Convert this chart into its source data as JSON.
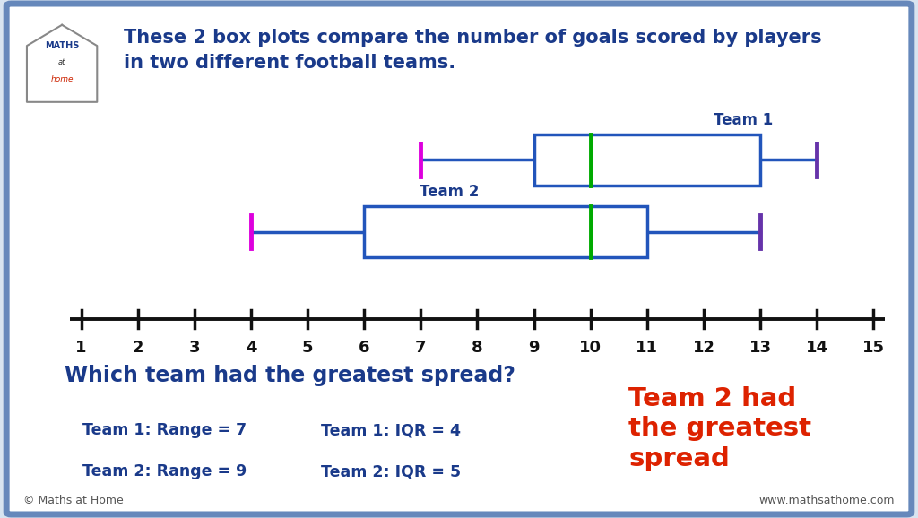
{
  "team1": {
    "min": 7,
    "q1": 9,
    "median": 10,
    "q3": 13,
    "max": 14,
    "label": "Team 1",
    "box_color": "#2255bb",
    "median_color": "#00aa00",
    "whisker_color": "#2255bb",
    "min_color": "#dd00dd",
    "max_color": "#6633aa",
    "range_text": "Team 1: Range = 7",
    "iqr_text": "Team 1: IQR = 4"
  },
  "team2": {
    "min": 4,
    "q1": 6,
    "median": 10,
    "q3": 11,
    "max": 13,
    "label": "Team 2",
    "box_color": "#2255bb",
    "median_color": "#00aa00",
    "whisker_color": "#2255bb",
    "min_color": "#dd00dd",
    "max_color": "#6633aa",
    "range_text": "Team 2: Range = 9",
    "iqr_text": "Team 2: IQR = 5"
  },
  "xmin": 1,
  "xmax": 15,
  "background_color": "#ffffff",
  "outer_bg": "#d8e4f0",
  "border_color": "#6688bb",
  "title_text": "These 2 box plots compare the number of goals scored by players\nin two different football teams.",
  "title_color": "#1a3a8a",
  "question_text": "Which team had the greatest spread?",
  "question_color": "#1a3a8a",
  "answer_text": "Team 2 had\nthe greatest\nspread",
  "answer_color": "#dd2200",
  "footer_left": "© Maths at Home",
  "footer_right": "www.mathsathome.com",
  "axis_color": "#111111",
  "tick_labels": [
    1,
    2,
    3,
    4,
    5,
    6,
    7,
    8,
    9,
    10,
    11,
    12,
    13,
    14,
    15
  ],
  "stats_color": "#1a3a8a"
}
